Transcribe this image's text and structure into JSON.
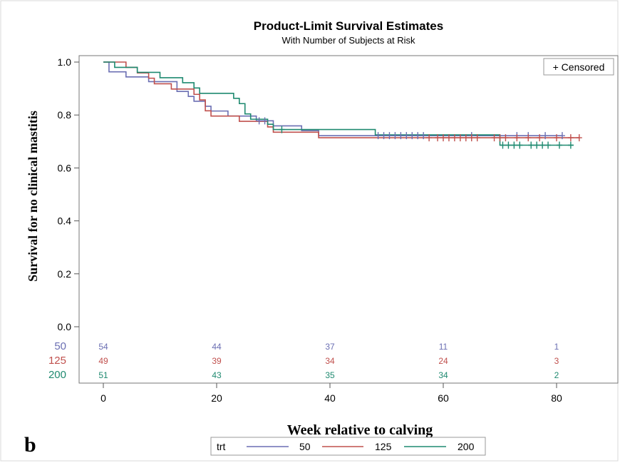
{
  "panel_label": "b",
  "chart_data": {
    "type": "line",
    "subtype": "step",
    "title": "Product-Limit Survival Estimates",
    "subtitle": "With Number of Subjects at Risk",
    "xlabel": "Week relative to calving",
    "ylabel": "Survival for no clinical mastitis",
    "xlim": [
      -3,
      92
    ],
    "ylim": [
      0,
      1.0
    ],
    "xticks": [
      0,
      20,
      40,
      60,
      80
    ],
    "yticks": [
      0.0,
      0.2,
      0.4,
      0.6,
      0.8,
      1.0
    ],
    "xtick_labels": [
      "0",
      "20",
      "40",
      "60",
      "80"
    ],
    "ytick_labels": [
      "0.0",
      "0.2",
      "0.4",
      "0.6",
      "0.8",
      "1.0"
    ],
    "censored_legend": "+ Censored",
    "legend_title": "trt",
    "legend_position": "bottom",
    "grid": false,
    "series": [
      {
        "name": "50",
        "color": "#6b6fb3",
        "steps": [
          [
            0,
            1.0
          ],
          [
            1,
            0.963
          ],
          [
            3,
            0.963
          ],
          [
            4,
            0.944
          ],
          [
            7,
            0.944
          ],
          [
            8,
            0.926
          ],
          [
            12,
            0.926
          ],
          [
            13,
            0.889
          ],
          [
            15,
            0.87
          ],
          [
            16,
            0.852
          ],
          [
            18,
            0.833
          ],
          [
            19,
            0.815
          ],
          [
            21,
            0.815
          ],
          [
            22,
            0.796
          ],
          [
            27,
            0.778
          ],
          [
            30,
            0.759
          ],
          [
            35,
            0.741
          ],
          [
            38,
            0.722
          ],
          [
            48,
            0.722
          ],
          [
            81,
            0.722
          ]
        ],
        "censored": [
          [
            27.5,
            0.778
          ],
          [
            28.5,
            0.778
          ],
          [
            48.5,
            0.722
          ],
          [
            49.5,
            0.722
          ],
          [
            50.5,
            0.722
          ],
          [
            51.5,
            0.722
          ],
          [
            52.5,
            0.722
          ],
          [
            53.5,
            0.722
          ],
          [
            54.5,
            0.722
          ],
          [
            55.5,
            0.722
          ],
          [
            56.5,
            0.722
          ],
          [
            65.0,
            0.722
          ],
          [
            73.0,
            0.722
          ],
          [
            75.0,
            0.722
          ],
          [
            78.0,
            0.722
          ],
          [
            81.0,
            0.722
          ]
        ],
        "at_risk": [
          54,
          44,
          37,
          11,
          1
        ]
      },
      {
        "name": "125",
        "color": "#c0504d",
        "steps": [
          [
            0,
            1.0
          ],
          [
            4,
            0.98
          ],
          [
            6,
            0.959
          ],
          [
            8,
            0.939
          ],
          [
            9,
            0.918
          ],
          [
            11,
            0.918
          ],
          [
            12,
            0.898
          ],
          [
            15,
            0.898
          ],
          [
            16,
            0.878
          ],
          [
            17,
            0.857
          ],
          [
            18,
            0.816
          ],
          [
            19,
            0.796
          ],
          [
            23,
            0.796
          ],
          [
            24,
            0.776
          ],
          [
            29,
            0.755
          ],
          [
            30,
            0.735
          ],
          [
            37,
            0.735
          ],
          [
            38,
            0.714
          ],
          [
            84,
            0.714
          ]
        ],
        "censored": [
          [
            57.5,
            0.714
          ],
          [
            59.0,
            0.714
          ],
          [
            60.0,
            0.714
          ],
          [
            61.0,
            0.714
          ],
          [
            62.0,
            0.714
          ],
          [
            63.0,
            0.714
          ],
          [
            64.0,
            0.714
          ],
          [
            65.0,
            0.714
          ],
          [
            66.0,
            0.714
          ],
          [
            69.0,
            0.714
          ],
          [
            70.0,
            0.714
          ],
          [
            71.0,
            0.714
          ],
          [
            73.0,
            0.714
          ],
          [
            75.0,
            0.714
          ],
          [
            77.0,
            0.714
          ],
          [
            80.0,
            0.714
          ],
          [
            82.5,
            0.714
          ],
          [
            84.0,
            0.714
          ]
        ],
        "at_risk": [
          49,
          39,
          34,
          24,
          3
        ]
      },
      {
        "name": "200",
        "color": "#1f8a70",
        "steps": [
          [
            0,
            1.0
          ],
          [
            2,
            0.98
          ],
          [
            5,
            0.98
          ],
          [
            6,
            0.961
          ],
          [
            10,
            0.941
          ],
          [
            14,
            0.922
          ],
          [
            16,
            0.902
          ],
          [
            17,
            0.882
          ],
          [
            22,
            0.882
          ],
          [
            23,
            0.863
          ],
          [
            24,
            0.843
          ],
          [
            25,
            0.804
          ],
          [
            26,
            0.784
          ],
          [
            28,
            0.784
          ],
          [
            29,
            0.765
          ],
          [
            30,
            0.745
          ],
          [
            47,
            0.745
          ],
          [
            48,
            0.725
          ],
          [
            69,
            0.725
          ],
          [
            70,
            0.686
          ],
          [
            83,
            0.686
          ]
        ],
        "censored": [
          [
            31.5,
            0.745
          ],
          [
            70.5,
            0.686
          ],
          [
            71.5,
            0.686
          ],
          [
            72.5,
            0.686
          ],
          [
            73.5,
            0.686
          ],
          [
            75.5,
            0.686
          ],
          [
            76.5,
            0.686
          ],
          [
            77.5,
            0.686
          ],
          [
            78.5,
            0.686
          ],
          [
            80.5,
            0.686
          ],
          [
            82.5,
            0.686
          ]
        ],
        "at_risk": [
          51,
          43,
          35,
          34,
          2
        ]
      }
    ],
    "at_risk_x": [
      0,
      20,
      40,
      60,
      80
    ]
  }
}
